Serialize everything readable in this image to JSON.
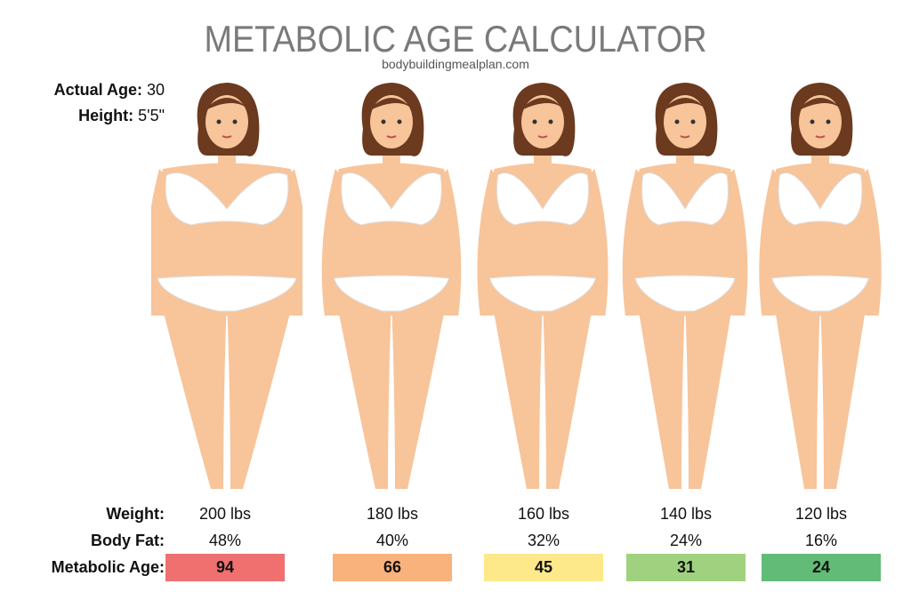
{
  "title": "METABOLIC AGE CALCULATOR",
  "website": "bodybuildingmealplan.com",
  "profile": {
    "actual_age_label": "Actual Age:",
    "actual_age": "30",
    "height_label": "Height:",
    "height": "5'5\""
  },
  "row_labels": {
    "weight": "Weight:",
    "body_fat": "Body Fat:",
    "metabolic_age": "Metabolic Age:"
  },
  "figures": [
    {
      "weight": "200 lbs",
      "body_fat": "48%",
      "metabolic_age": "94",
      "color": "#f07070"
    },
    {
      "weight": "180 lbs",
      "body_fat": "40%",
      "metabolic_age": "66",
      "color": "#f9b27c"
    },
    {
      "weight": "160 lbs",
      "body_fat": "32%",
      "metabolic_age": "45",
      "color": "#fde88a"
    },
    {
      "weight": "140 lbs",
      "body_fat": "24%",
      "metabolic_age": "31",
      "color": "#a0d17f"
    },
    {
      "weight": "120 lbs",
      "body_fat": "16%",
      "metabolic_age": "24",
      "color": "#63bb78"
    }
  ],
  "colors": {
    "skin": "#f8c49a",
    "hair": "#6b3a1f",
    "title": "#7a7a7a"
  }
}
